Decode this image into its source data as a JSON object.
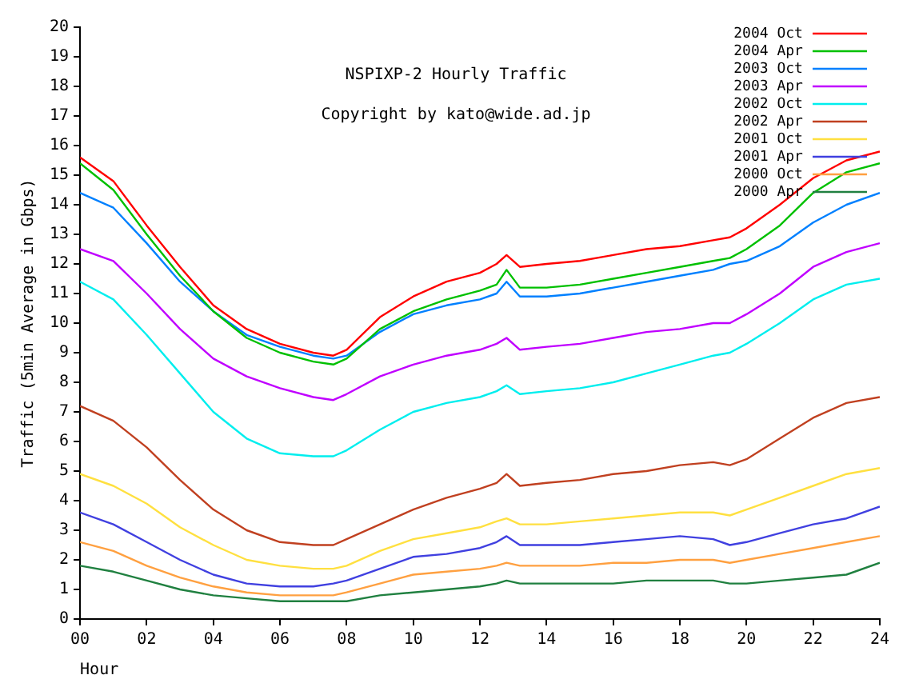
{
  "chart_data": {
    "type": "line",
    "title": "NSPIXP-2 Hourly Traffic",
    "annotations": [
      "Copyright by kato@wide.ad.jp"
    ],
    "xlabel": "Hour",
    "ylabel": "Traffic (5min Average in Gbps)",
    "x": [
      0,
      1,
      2,
      3,
      4,
      5,
      6,
      7,
      7.6,
      8,
      9,
      10,
      11,
      12,
      12.5,
      12.8,
      13.2,
      14,
      15,
      16,
      17,
      18,
      19,
      19.5,
      20,
      21,
      22,
      23,
      24
    ],
    "xlim": [
      0,
      24
    ],
    "xticks": [
      {
        "value": 0,
        "label": "00"
      },
      {
        "value": 2,
        "label": "02"
      },
      {
        "value": 4,
        "label": "04"
      },
      {
        "value": 6,
        "label": "06"
      },
      {
        "value": 8,
        "label": "08"
      },
      10,
      12,
      14,
      16,
      18,
      20,
      22,
      24
    ],
    "ylim": [
      0,
      20
    ],
    "yticks": [
      0,
      1,
      2,
      3,
      4,
      5,
      6,
      7,
      8,
      9,
      10,
      11,
      12,
      13,
      14,
      15,
      16,
      17,
      18,
      19,
      20
    ],
    "grid": false,
    "legend": "top right",
    "marker": "none",
    "line_style": "solid",
    "series": [
      {
        "name": "2004 Oct",
        "color": "#ff0000",
        "values": [
          15.6,
          14.8,
          13.3,
          11.9,
          10.6,
          9.8,
          9.3,
          9.0,
          8.9,
          9.1,
          10.2,
          10.9,
          11.4,
          11.7,
          12.0,
          12.3,
          11.9,
          12.0,
          12.1,
          12.3,
          12.5,
          12.6,
          12.8,
          12.9,
          13.2,
          14.0,
          14.9,
          15.5,
          15.8
        ]
      },
      {
        "name": "2004 Apr",
        "color": "#00c000",
        "values": [
          15.4,
          14.5,
          13.0,
          11.6,
          10.4,
          9.5,
          9.0,
          8.7,
          8.6,
          8.8,
          9.8,
          10.4,
          10.8,
          11.1,
          11.3,
          11.8,
          11.2,
          11.2,
          11.3,
          11.5,
          11.7,
          11.9,
          12.1,
          12.2,
          12.5,
          13.3,
          14.4,
          15.1,
          15.4
        ]
      },
      {
        "name": "2003 Oct",
        "color": "#0080ff",
        "values": [
          14.4,
          13.9,
          12.7,
          11.4,
          10.4,
          9.6,
          9.2,
          8.9,
          8.8,
          8.9,
          9.7,
          10.3,
          10.6,
          10.8,
          11.0,
          11.4,
          10.9,
          10.9,
          11.0,
          11.2,
          11.4,
          11.6,
          11.8,
          12.0,
          12.1,
          12.6,
          13.4,
          14.0,
          14.4
        ]
      },
      {
        "name": "2003 Apr",
        "color": "#c000ff",
        "values": [
          12.5,
          12.1,
          11.0,
          9.8,
          8.8,
          8.2,
          7.8,
          7.5,
          7.4,
          7.6,
          8.2,
          8.6,
          8.9,
          9.1,
          9.3,
          9.5,
          9.1,
          9.2,
          9.3,
          9.5,
          9.7,
          9.8,
          10.0,
          10.0,
          10.3,
          11.0,
          11.9,
          12.4,
          12.7
        ]
      },
      {
        "name": "2002 Oct",
        "color": "#00eeee",
        "values": [
          11.4,
          10.8,
          9.6,
          8.3,
          7.0,
          6.1,
          5.6,
          5.5,
          5.5,
          5.7,
          6.4,
          7.0,
          7.3,
          7.5,
          7.7,
          7.9,
          7.6,
          7.7,
          7.8,
          8.0,
          8.3,
          8.6,
          8.9,
          9.0,
          9.3,
          10.0,
          10.8,
          11.3,
          11.5
        ]
      },
      {
        "name": "2002 Apr",
        "color": "#c04020",
        "values": [
          7.2,
          6.7,
          5.8,
          4.7,
          3.7,
          3.0,
          2.6,
          2.5,
          2.5,
          2.7,
          3.2,
          3.7,
          4.1,
          4.4,
          4.6,
          4.9,
          4.5,
          4.6,
          4.7,
          4.9,
          5.0,
          5.2,
          5.3,
          5.2,
          5.4,
          6.1,
          6.8,
          7.3,
          7.5
        ]
      },
      {
        "name": "2001 Oct",
        "color": "#ffe040",
        "values": [
          4.9,
          4.5,
          3.9,
          3.1,
          2.5,
          2.0,
          1.8,
          1.7,
          1.7,
          1.8,
          2.3,
          2.7,
          2.9,
          3.1,
          3.3,
          3.4,
          3.2,
          3.2,
          3.3,
          3.4,
          3.5,
          3.6,
          3.6,
          3.5,
          3.7,
          4.1,
          4.5,
          4.9,
          5.1
        ]
      },
      {
        "name": "2001 Apr",
        "color": "#4040e0",
        "values": [
          3.6,
          3.2,
          2.6,
          2.0,
          1.5,
          1.2,
          1.1,
          1.1,
          1.2,
          1.3,
          1.7,
          2.1,
          2.2,
          2.4,
          2.6,
          2.8,
          2.5,
          2.5,
          2.5,
          2.6,
          2.7,
          2.8,
          2.7,
          2.5,
          2.6,
          2.9,
          3.2,
          3.4,
          3.8
        ]
      },
      {
        "name": "2000 Oct",
        "color": "#ffa040",
        "values": [
          2.6,
          2.3,
          1.8,
          1.4,
          1.1,
          0.9,
          0.8,
          0.8,
          0.8,
          0.9,
          1.2,
          1.5,
          1.6,
          1.7,
          1.8,
          1.9,
          1.8,
          1.8,
          1.8,
          1.9,
          1.9,
          2.0,
          2.0,
          1.9,
          2.0,
          2.2,
          2.4,
          2.6,
          2.8
        ]
      },
      {
        "name": "2000 Apr",
        "color": "#208040",
        "values": [
          1.8,
          1.6,
          1.3,
          1.0,
          0.8,
          0.7,
          0.6,
          0.6,
          0.6,
          0.6,
          0.8,
          0.9,
          1.0,
          1.1,
          1.2,
          1.3,
          1.2,
          1.2,
          1.2,
          1.2,
          1.3,
          1.3,
          1.3,
          1.2,
          1.2,
          1.3,
          1.4,
          1.5,
          1.9
        ]
      }
    ]
  }
}
